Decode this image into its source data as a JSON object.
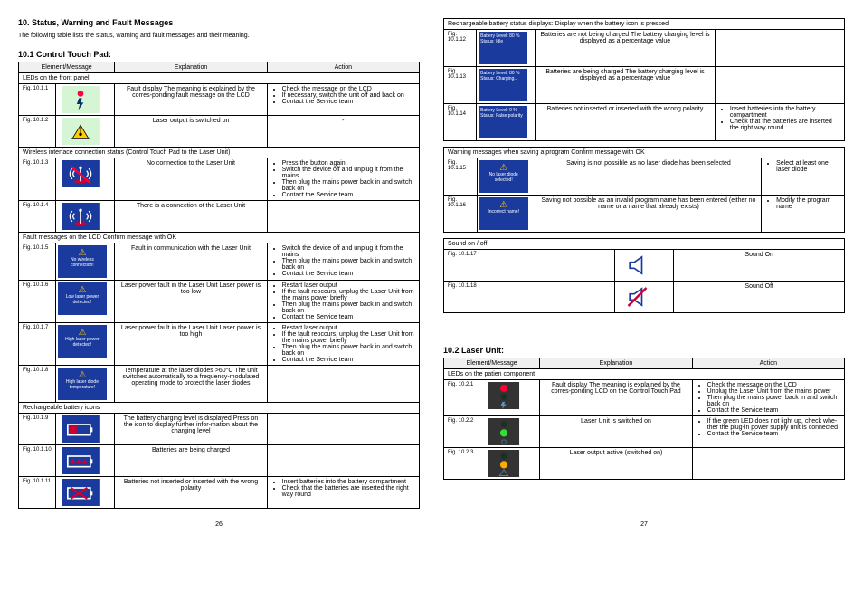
{
  "heading": "10. Status, Warning and Fault Messages",
  "intro": "The following table lists the status, warning and fault messages and their meaning.",
  "sec101": "10.1 Control Touch Pad:",
  "sec102": "10.2 Laser Unit:",
  "headers": {
    "elem": "Element/Message",
    "exp": "Explanation",
    "act": "Action"
  },
  "subheads": {
    "leds_front": "LEDs on the front panel",
    "wireless": "Wireless interface connection status (Control Touch Pad to the Laser Unit)",
    "fault_lcd": "Fault messages on the LCD     Confirm message with OK",
    "battery_icons": "Rechargeable battery icons",
    "battery_status": "Rechargeable battery status displays: Display when the battery icon is pressed",
    "warn_save": "Warning messages when saving a program          Confirm message with OK",
    "sound": "Sound on / off",
    "leds_patien": "LEDs on the patien component"
  },
  "r": {
    "f1": {
      "fig": "Fig. 10.1.1",
      "exp": "Fault display\nThe meaning is explained by the corres-ponding fault message on the LCD",
      "act": [
        "Check the message on the LCD",
        "If necessary, switch the unit off and back on",
        "Contact the Service team"
      ]
    },
    "f2": {
      "fig": "Fig. 10.1.2",
      "exp": "Laser output is switched on",
      "act": "-"
    },
    "f3": {
      "fig": "Fig. 10.1.3",
      "exp": "No connection to the Laser Unit",
      "act": [
        "Press the button again",
        "Switch the device off and unplug it from the mains",
        "Then plug the mains power back in and switch back on",
        "Contact the Service team"
      ]
    },
    "f4": {
      "fig": "Fig. 10.1.4",
      "exp": "There is a connection ot the Laser Unit"
    },
    "f5": {
      "fig": "Fig. 10.1.5",
      "lcd": "No wireless connection!",
      "exp": "Fault in communication\nwith the Laser Unit",
      "act": [
        "Switch the device off and unplug it from the mains",
        "Then plug the mains power back in and switch back on",
        "Contact the Service team"
      ]
    },
    "f6": {
      "fig": "Fig. 10.1.6",
      "lcd": "Low laser power detected!",
      "exp": "Laser power fault in the Laser Unit\nLaser power is too low",
      "act": [
        "Restart laser output",
        "If the fault reoccurs, unplug the Laser Unit from the mains power briefly",
        "Then plug the mains power back in and switch back on",
        "Contact the Service team"
      ]
    },
    "f7": {
      "fig": "Fig. 10.1.7",
      "lcd": "High laser power detected!",
      "exp": "Laser power fault in the Laser Unit\nLaser power is too high",
      "act": [
        "Restart laser output",
        "If the fault reoccurs, unplug the Laser Unit from the mains power briefly",
        "Then plug the mains power back in and switch back on",
        "Contact the Service team"
      ]
    },
    "f8": {
      "fig": "Fig. 10.1.8",
      "lcd": "High laser diode temperature!",
      "exp": "Temperature at the laser diodes >60°C\nThe unit switches automatically to a frequency-modulated operating mode to protect the laser diodes"
    },
    "f9": {
      "fig": "Fig. 10.1.9",
      "exp": "The battery charging level is displayed\nPress on the icon to display further infor-mation about the charging level"
    },
    "f10": {
      "fig": "Fig. 10.1.10",
      "exp": "Batteries are being charged"
    },
    "f11": {
      "fig": "Fig. 10.1.11",
      "exp": "Batteries not inserted or inserted with the wrong polarity",
      "act": [
        "Insert batteries into the battery compartment",
        "Check that the batteries are inserted the right way round"
      ]
    },
    "f12": {
      "fig": "Fig. 10.1.12",
      "lcd": "Battery Level: 80 %\nStatus: Idle",
      "exp": "Batteries are not being charged\nThe battery charging level is displayed as a percentage value"
    },
    "f13": {
      "fig": "Fig. 10.1.13",
      "lcd": "Battery Level: 80 %\nStatus: Charging...",
      "exp": "Batteries are being charged\nThe battery charging level is displayed as a percentage value"
    },
    "f14": {
      "fig": "Fig. 10.1.14",
      "lcd": "Battery Level: 0 %\nStatus: False polarity",
      "exp": "Batteries not inserted or inserted with the wrong polarity",
      "act": [
        "Insert batteries into the battery compartment",
        "Check that the batteries are inserted the right way round"
      ]
    },
    "f15": {
      "fig": "Fig. 10.1.15",
      "lcd": "No laser diode selected!",
      "exp": "Saving is not possible as no laser diode has been selected",
      "act": [
        "Select at least one laser diode"
      ]
    },
    "f16": {
      "fig": "Fig. 10.1.16",
      "lcd": "Incorrect name!",
      "exp": "Saving not possible as an invalid program name has been entered (either no name or a name that already exists)",
      "act": [
        "Modify the program name"
      ]
    },
    "f17": {
      "fig": "Fig. 10.1.17",
      "exp": "Sound On"
    },
    "f18": {
      "fig": "Fig. 10.1.18",
      "exp": "Sound Off"
    },
    "g1": {
      "fig": "Fig. 10.2.1",
      "exp": "Fault display\nThe meaning is explained by the corres-ponding LCD on the Control Touch Pad",
      "act": [
        "Check the message on the LCD",
        "Unplug the Laser Unit from the mains power",
        "Then plug the mains power back in and switch back on",
        "Contact the Service team"
      ]
    },
    "g2": {
      "fig": "Fig. 10.2.2",
      "exp": "Laser Unit is switched on",
      "act": [
        "If the green LED does not light up, check whe-ther the plug-in power supply unit is connected",
        "Contact the Service team"
      ]
    },
    "g3": {
      "fig": "Fig. 10.2.3",
      "exp": "Laser output active (switched on)"
    }
  },
  "pagenum_left": "26",
  "pagenum_right": "27"
}
